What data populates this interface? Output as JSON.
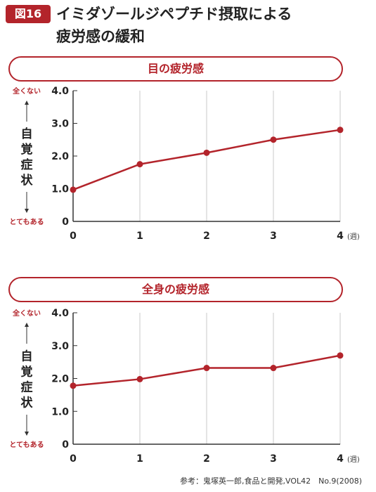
{
  "header": {
    "badge": "図16",
    "title_line1": "イミダゾールジペプチド摂取による",
    "title_line2": "疲労感の緩和"
  },
  "source": "参考：鬼塚英一郎,食品と開発,VOL42　No.9(2008)",
  "colors": {
    "accent": "#b3242b",
    "axis": "#333333",
    "grid": "#c8c8c8"
  },
  "chart_data": [
    {
      "type": "line",
      "title": "目の疲労感",
      "ylabel": "自覚症状",
      "y_top_label": "全くない",
      "y_bottom_label": "とてもある",
      "x_unit": "(週)",
      "x": [
        0,
        1,
        2,
        3,
        4
      ],
      "values": [
        0.97,
        1.75,
        2.1,
        2.5,
        2.8
      ],
      "xlim": [
        0,
        4
      ],
      "ylim": [
        0,
        4
      ],
      "y_ticks": [
        "0",
        "1.0",
        "2.0",
        "3.0",
        "4.0"
      ],
      "x_ticks": [
        "0",
        "1",
        "2",
        "3",
        "4"
      ],
      "grid": "vertical"
    },
    {
      "type": "line",
      "title": "全身の疲労感",
      "ylabel": "自覚症状",
      "y_top_label": "全くない",
      "y_bottom_label": "とてもある",
      "x_unit": "(週)",
      "x": [
        0,
        1,
        2,
        3,
        4
      ],
      "values": [
        1.78,
        1.98,
        2.32,
        2.32,
        2.7
      ],
      "xlim": [
        0,
        4
      ],
      "ylim": [
        0,
        4
      ],
      "y_ticks": [
        "0",
        "1.0",
        "2.0",
        "3.0",
        "4.0"
      ],
      "x_ticks": [
        "0",
        "1",
        "2",
        "3",
        "4"
      ],
      "grid": "vertical"
    }
  ]
}
